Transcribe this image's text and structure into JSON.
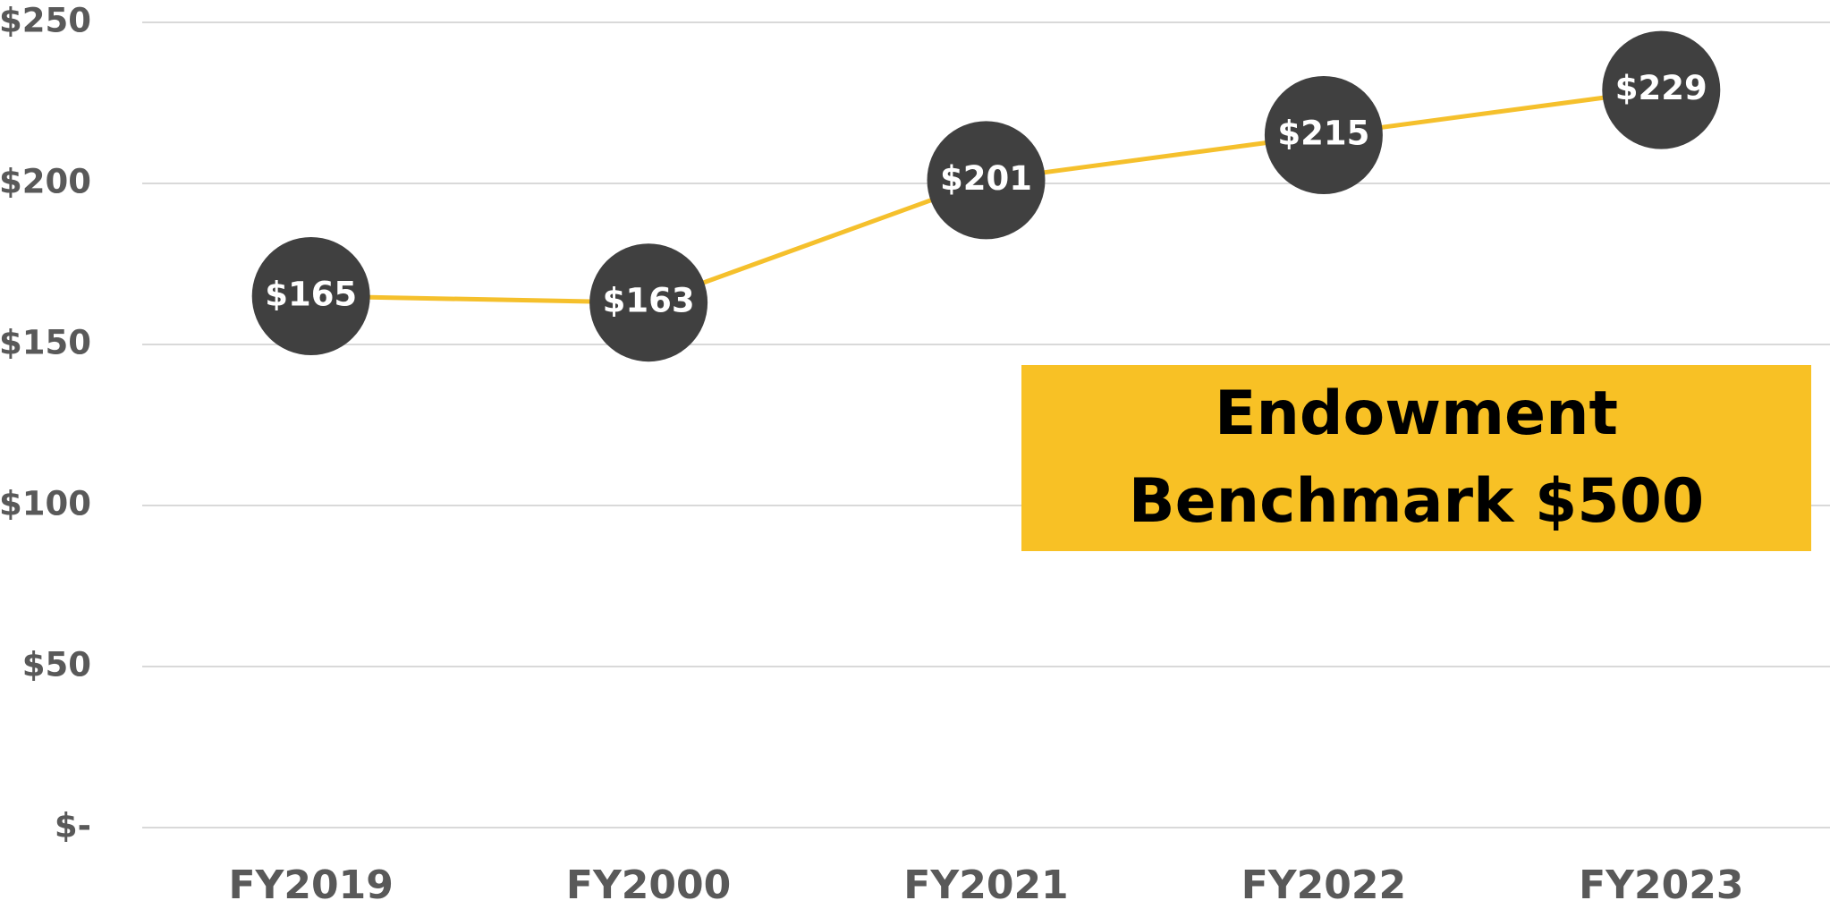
{
  "chart_data": {
    "type": "line",
    "categories": [
      "FY2019",
      "FY2000",
      "FY2021",
      "FY2022",
      "FY2023"
    ],
    "series": [
      {
        "name": "Endowment",
        "color": "#f5c02c",
        "marker_color": "#404040",
        "values": [
          165,
          163,
          201,
          215,
          229
        ],
        "value_labels": [
          "$165",
          "$163",
          "$201",
          "$215",
          "$229"
        ]
      }
    ],
    "ylim": [
      0,
      250
    ],
    "yticks": [
      {
        "value": 0,
        "label": "$-"
      },
      {
        "value": 50,
        "label": "$50"
      },
      {
        "value": 100,
        "label": "$100"
      },
      {
        "value": 150,
        "label": "$150"
      },
      {
        "value": 200,
        "label": "$200"
      },
      {
        "value": 250,
        "label": "$250"
      }
    ],
    "grid": true,
    "annotation": "Endowment Benchmark $500"
  }
}
